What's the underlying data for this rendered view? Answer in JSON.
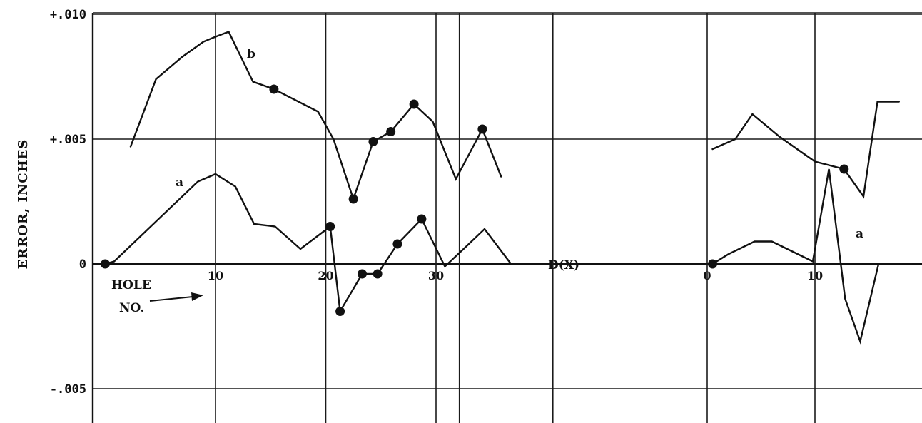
{
  "chart_data": {
    "type": "line",
    "ylabel": "ERROR, INCHES",
    "ylim": [
      -0.0065,
      0.01
    ],
    "ytick_labels": [
      {
        "value": 0.01,
        "label": "+.010"
      },
      {
        "value": 0.005,
        "label": "+.005"
      },
      {
        "value": 0.0,
        "label": "0"
      },
      {
        "value": -0.005,
        "label": "-.005"
      }
    ],
    "grid": true,
    "hole_label": {
      "line1": "HOLE",
      "line2": "NO."
    },
    "axis_label": "D(X)",
    "panels": [
      {
        "name": "left",
        "xlim": [
          -2,
          41
        ],
        "xticks": [
          10,
          20,
          30
        ],
        "xtick_labels": [
          "10",
          "20",
          "30"
        ],
        "series": [
          {
            "name": "b",
            "x": [
              2.3,
              4.6,
              7,
              8.9,
              10,
              11.2,
              13.4,
              15.3,
              19.3,
              20.7,
              22.5,
              24.3,
              25.9,
              28,
              29.7,
              31.8,
              34.2,
              35.9
            ],
            "y": [
              0.0047,
              0.0074,
              0.0083,
              0.0089,
              0.0091,
              0.0093,
              0.0073,
              0.007,
              0.0061,
              0.005,
              0.0026,
              0.0049,
              0.0053,
              0.0064,
              0.0057,
              0.0034,
              0.0054,
              0.0035
            ],
            "markers": [
              0,
              0,
              0,
              0,
              0,
              0,
              0,
              1,
              0,
              0,
              1,
              1,
              1,
              1,
              0,
              0,
              1,
              0
            ]
          },
          {
            "name": "a",
            "x": [
              0,
              0.8,
              8.4,
              10,
              11.8,
              13.5,
              15.4,
              17.7,
              20.4,
              21.3,
              23.3,
              24.7,
              26.5,
              28.7,
              30.8,
              32.5,
              34.4,
              36.8
            ],
            "y": [
              0.0,
              0.0001,
              0.0033,
              0.0036,
              0.0031,
              0.0016,
              0.0015,
              0.0006,
              0.0015,
              -0.0019,
              -0.0004,
              -0.0004,
              0.0008,
              0.0018,
              -0.0001,
              0.0006,
              0.0014,
              0.0
            ],
            "markers": [
              1,
              0,
              0,
              0,
              0,
              0,
              0,
              0,
              1,
              1,
              1,
              1,
              1,
              1,
              0,
              0,
              0,
              0
            ]
          }
        ]
      },
      {
        "name": "right",
        "xlim": [
          -2,
          19
        ],
        "xticks": [
          0,
          10
        ],
        "xtick_labels": [
          "0",
          "10"
        ],
        "series": [
          {
            "name": "",
            "x": [
              0.5,
              2.6,
              4.2,
              6.7,
              10,
              12.7,
              14.5,
              15.8,
              17.8
            ],
            "y": [
              0.0046,
              0.005,
              0.006,
              0.0051,
              0.0041,
              0.0038,
              0.0027,
              0.0065,
              0.0065
            ],
            "markers": [
              0,
              0,
              0,
              0,
              0,
              1,
              0,
              0,
              0
            ]
          },
          {
            "name": "a",
            "x": [
              0.5,
              2,
              4.4,
              6,
              9.8,
              11.3,
              12.8,
              14.2,
              15.9,
              17.8
            ],
            "y": [
              0.0,
              0.0004,
              0.0009,
              0.0009,
              0.0001,
              0.0038,
              -0.0014,
              -0.0031,
              0.0,
              0.0
            ],
            "markers": [
              1,
              0,
              0,
              0,
              0,
              0,
              0,
              0,
              0,
              0
            ]
          }
        ]
      }
    ]
  }
}
